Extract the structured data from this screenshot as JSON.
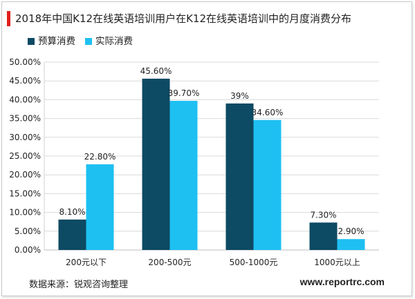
{
  "title": "2018年中国K12在线英语培训用户在K12在线英语培训中的月度消费分布",
  "source_text": "数据来源：锐观咨询整理",
  "website": "www.reportrc.com",
  "colors": {
    "title_accent": "#e0201c",
    "budget": "#0d4a63",
    "actual": "#1ec0f2",
    "gridline": "#d9d9d9"
  },
  "chart_data": {
    "type": "bar",
    "categories": [
      "200元以下",
      "200-500元",
      "500-1000元",
      "1000元以上"
    ],
    "series": [
      {
        "name": "预算消费",
        "values": [
          8.1,
          45.6,
          39,
          7.3
        ],
        "labels": [
          "8.10%",
          "45.60%",
          "39%",
          "7.30%"
        ],
        "color": "#0d4a63"
      },
      {
        "name": "实际消费",
        "values": [
          22.8,
          39.7,
          34.6,
          2.9
        ],
        "labels": [
          "22.80%",
          "39.70%",
          "34.60%",
          "2.90%"
        ],
        "color": "#1ec0f2"
      }
    ],
    "ylim": [
      0,
      50
    ],
    "yticks": [
      0,
      5,
      10,
      15,
      20,
      25,
      30,
      35,
      40,
      45,
      50
    ],
    "ytick_labels": [
      "0.00%",
      "5.00%",
      "10.00%",
      "15.00%",
      "20.00%",
      "25.00%",
      "30.00%",
      "35.00%",
      "40.00%",
      "45.00%",
      "50.00%"
    ],
    "xlabel": "",
    "ylabel": "",
    "grid": true,
    "legend_position": "top-left"
  }
}
